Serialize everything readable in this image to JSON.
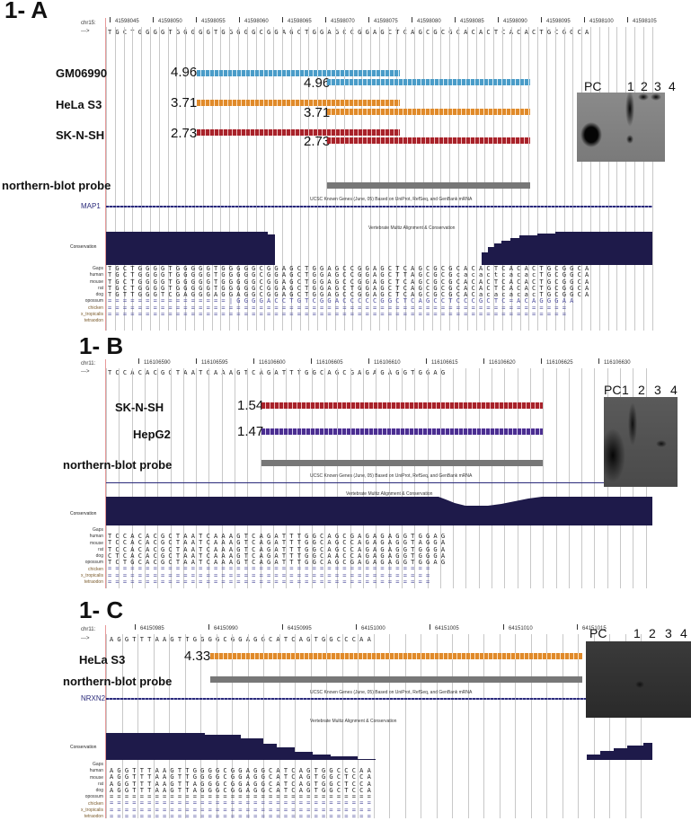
{
  "panels": [
    {
      "title": "1- A",
      "chr": "chr15:",
      "arrow": "--->",
      "coords": [
        "41598045",
        "41598050",
        "41598055",
        "41598060",
        "41598065",
        "41598070",
        "41598075",
        "41598080",
        "41598085",
        "41598090",
        "41598095",
        "41598100",
        "41598105"
      ],
      "dna": "T G C T G G G G T G G G G G T G G G G G C G G A G C T G G A G C C G G A G C T C A G C G C G C A C A C T C A C A C T G C G G C A",
      "tracks": [
        {
          "label": "GM06990",
          "score1": "4.96",
          "score2": "4.96",
          "color": "blue"
        },
        {
          "label": "HeLa S3",
          "score1": "3.71",
          "score2": "3.71",
          "color": "orange"
        },
        {
          "label": "SK-N-SH",
          "score1": "2.73",
          "score2": "2.73",
          "color": "red"
        }
      ],
      "probe_label": "northern-blot probe",
      "ucsc_caption": "UCSC Known Genes (June, 05) Based on UniProt, RefSeq, and GenBank mRNA",
      "gene": "MAP1",
      "multiz_caption": "Vertebrate Multiz Alignment & Conservation",
      "conservation_label": "Conservation",
      "species": [
        "Gaps",
        "human",
        "mouse",
        "rat",
        "dog",
        "opossum",
        "chicken",
        "x_tropicalis",
        "tetraodon"
      ],
      "align_rows": [
        "T G C T G G G G T G G G G G T G G G G G C G G A G C T G G A G C C G G A G C T C A G C G C G C A C A C T C A C A C T G C G G C A",
        "T G C T G G G G T G G G G G T G G G G G C G G A G C T G G A G C C G G A G C T T A G C G C G c a c a c t c a c a c T G C G G C A",
        "T G C T G G G G T G G G G G T G G G G G C G G A G C T G G A G C C G G A G C T C A G C G C G C A C A C T C A C A C T G C G G C A",
        "T G C T G G G G T G G G G G T G G G G G C G G A G C T G G A G C T G G A G C T C A G C G C G C A C A C T C A C A C T G C G G C A",
        "T G T T G G G T C G A G G G A G G A G G C G G A G C T G G A G C C G G A G C T C A G C G C G C A C a c a c a c a c T G C G G C A",
        "= = = = = = = = = = = = = = = = | G G G G A C C T G T C G G A C C C C C G G C T C A G C C T C C C G C T C = A C A G G G A A",
        "= = = = = = = = = = = = = = = = = = = = = = = = = = = = = = = = = = = = = = = = = = = = = = = = = = = = = = = = = = = = =",
        "= = = = = = = = = = = = = = = = = = = = = = = = = = = = = = = = = = = = = = = = = = = = = = = = = = = = = = = = = = = = ="
      ],
      "blot_labels": [
        "PC",
        "1",
        "2",
        "3",
        "4"
      ]
    },
    {
      "title": "1- B",
      "chr": "chr11:",
      "arrow": "--->",
      "coords": [
        "116106590",
        "116106595",
        "116106600",
        "116106605",
        "116106610",
        "116106615",
        "116106620",
        "116106625",
        "116106630"
      ],
      "dna": "T C C A C A C G C T A A T C A A A G T C A G A T T T G G C A G C G A G A G A G G T G G A G",
      "tracks": [
        {
          "label": "SK-N-SH",
          "score1": "1.54",
          "color": "red"
        },
        {
          "label": "HepG2",
          "score1": "1.47",
          "color": "purple"
        }
      ],
      "probe_label": "northern-blot probe",
      "ucsc_caption": "UCSC Known Genes (June, 05) Based on UniProt, RefSeq, and GenBank mRNA",
      "multiz_caption": "Vertebrate Multiz Alignment & Conservation",
      "conservation_label": "Conservation",
      "species": [
        "Gaps",
        "human",
        "mouse",
        "rat",
        "dog",
        "opossum",
        "chicken",
        "x_tropicalis",
        "tetraodon"
      ],
      "align_rows": [
        "T C C A C A C G C T A A T C A A A G T C A G A T T T G G C A G C G A G A G A G G T G G A G",
        "T C C A C A C G C T A A T C A A A G T C A G A T T T G G C A G C C A G A G A G G T A G G A",
        "T C C A C A C G C T A A T C A A A G T C A G A T T T G G C A G C C A G A G A G G T G G G A",
        "C T C A C A C G C T A A T C A A A G T C A G A T T T G G C A A C C A G A G A G G T G G G A",
        "T C T G C A C G C T A A T C A A A G T C A G A T T T G G C A G C G A G A G A G G T G G A G",
        "= = = = = = = = = = = = = = = = = = = = = = = = = = = = = = = = = = = = = = = = = = =",
        "= = = = = = = = = = = = = = = = = = = = = = = = = = = = = = = = = = = = = = = = = = =",
        "= = = = = = = = = = = = = = = = = = = = = = = = = = = = = = = = = = = = = = = = = = ="
      ],
      "blot_labels": [
        "PC",
        "1",
        "2",
        "3",
        "4"
      ]
    },
    {
      "title": "1- C",
      "chr": "chr11:",
      "arrow": "--->",
      "coords": [
        "64150985",
        "64150990",
        "64150995",
        "64151000",
        "64151005",
        "64151010",
        "64151015"
      ],
      "dna": "A G G T T T A A G T T G G G G C G G A G G C A T C A G T G G C C C A A",
      "tracks": [
        {
          "label": "HeLa S3",
          "score1": "4.33",
          "color": "orange"
        }
      ],
      "probe_label": "northern-blot probe",
      "ucsc_caption": "UCSC Known Genes (June, 05) Based on UniProt, RefSeq, and GenBank mRNA",
      "gene": "NRXN2",
      "multiz_caption": "Vertebrate Multiz Alignment & Conservation",
      "conservation_label": "Conservation",
      "species": [
        "Gaps",
        "human",
        "mouse",
        "rat",
        "dog",
        "opossum",
        "chicken",
        "x_tropicalis",
        "tetraodon"
      ],
      "align_rows": [
        "A G G T T T A A G T T G G G G C G G A G G C A T C A G T G G C C C A A",
        "A G G T T T A A G T T G G G G C G G A G G C A T C A G T G G C T C C A",
        "A G G T T T A A G T T A G G G C G G A G G C A T C A G T G G C T C C A",
        "A G G T T T A A G T T A G G G C G G A G G C A T C A G T G G C T C C A",
        "= = = = = = = = = = = = = = = = = = = = = = = = = = = = = = = = = = =",
        "= = = = = = = = = = = = = = = = = = = = = = = = = = = = = = = = = = =",
        "= = = = = = = = = = = = = = = = = = = = = = = = = = = = = = = = = = =",
        "= = = = = = = = = = = = = = = = = = = = = = = = = = = = = = = = = = ="
      ],
      "blot_labels": [
        "PC",
        "1",
        "2",
        "3",
        "4"
      ]
    }
  ],
  "colors": {
    "conservation": "#1e1a4a",
    "blue": "#4a9cc8",
    "orange": "#e08a2a",
    "red": "#a8222a",
    "purple": "#4b2e91",
    "probe": "#777777",
    "gene": "#2a2a7a"
  }
}
